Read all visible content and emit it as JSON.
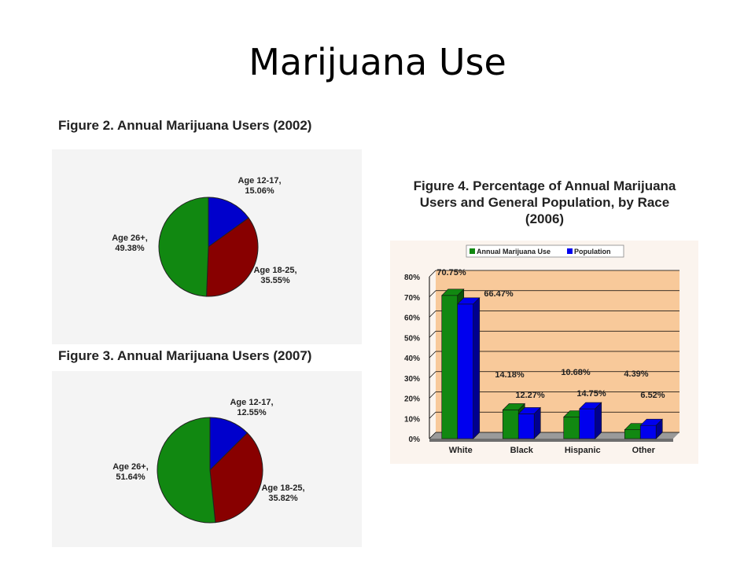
{
  "slide": {
    "title": "Marijuana Use"
  },
  "chart_data": [
    {
      "type": "pie",
      "title": "Figure 2.  Annual Marijuana Users (2002)",
      "slices": [
        {
          "label": "Age 12-17,",
          "value": 15.06,
          "text": "15.06%",
          "color": "#0000cc"
        },
        {
          "label": "Age 18-25,",
          "value": 35.55,
          "text": "35.55%",
          "color": "#880000"
        },
        {
          "label": "Age 26+,",
          "value": 49.38,
          "text": "49.38%",
          "color": "#118811"
        }
      ]
    },
    {
      "type": "pie",
      "title": "Figure 3.  Annual Marijuana Users (2007)",
      "slices": [
        {
          "label": "Age 12-17,",
          "value": 12.55,
          "text": "12.55%",
          "color": "#0000cc"
        },
        {
          "label": "Age 18-25,",
          "value": 35.82,
          "text": "35.82%",
          "color": "#880000"
        },
        {
          "label": "Age 26+,",
          "value": 51.64,
          "text": "51.64%",
          "color": "#118811"
        }
      ]
    },
    {
      "type": "bar",
      "title": [
        "Figure 4.  Percentage of Annual Marijuana",
        "Users and General Population, by Race",
        "(2006)"
      ],
      "categories": [
        "White",
        "Black",
        "Hispanic",
        "Other"
      ],
      "series": [
        {
          "name": "Annual Marijuana Use",
          "color": "#118811",
          "values": [
            70.75,
            14.18,
            10.68,
            4.39
          ],
          "labels": [
            "70.75%",
            "14.18%",
            "10.68%",
            "4.39%"
          ]
        },
        {
          "name": "Population",
          "color": "#0000ee",
          "values": [
            66.47,
            12.27,
            14.75,
            6.52
          ],
          "labels": [
            "66.47%",
            "12.27%",
            "14.75%",
            "6.52%"
          ]
        }
      ],
      "yticks": [
        "0%",
        "10%",
        "20%",
        "30%",
        "40%",
        "50%",
        "60%",
        "70%",
        "80%"
      ],
      "ylim": [
        0,
        80
      ],
      "plot_background": "#f8c99a"
    }
  ]
}
